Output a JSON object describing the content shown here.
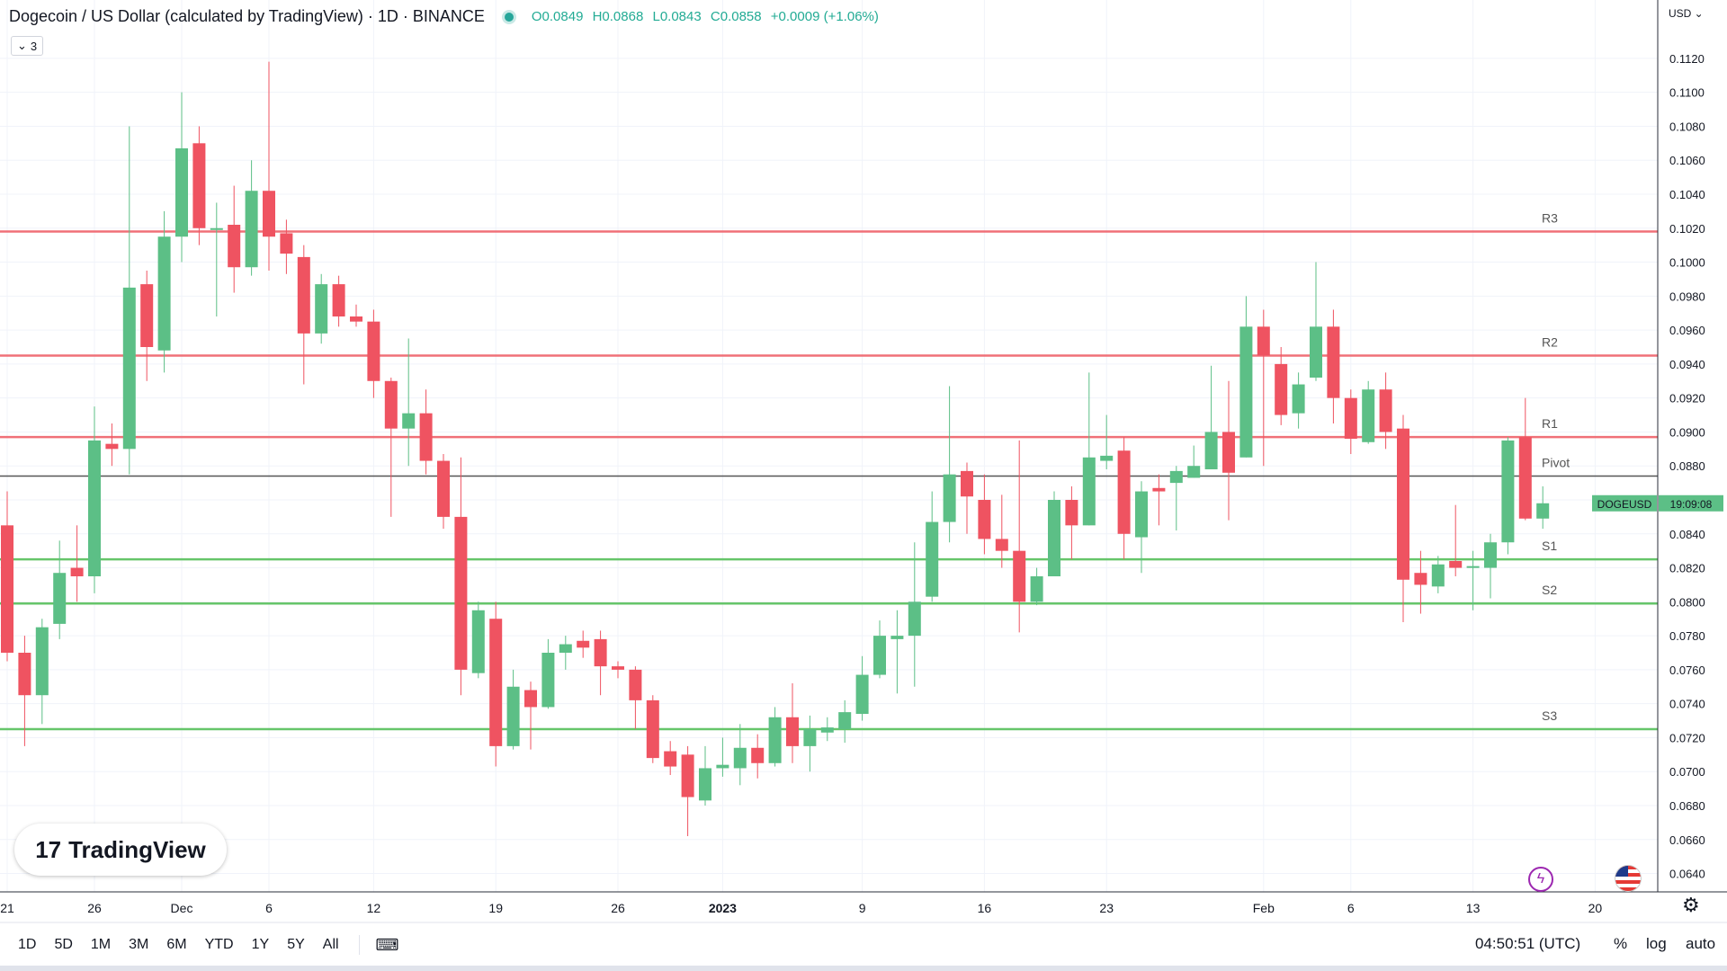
{
  "header": {
    "title": "Dogecoin / US Dollar (calculated by TradingView) · 1D · BINANCE",
    "open": "O0.0849",
    "high": "H0.0868",
    "low": "L0.0843",
    "close": "C0.0858",
    "change": "+0.0009 (+1.06%)",
    "indicator_count": "3"
  },
  "currency": "USD",
  "logo_text": "TradingView",
  "price_tag": {
    "symbol": "DOGEUSD",
    "countdown": "19:09:08",
    "price": 0.0858
  },
  "timeframes": [
    "1D",
    "5D",
    "1M",
    "3M",
    "6M",
    "YTD",
    "1Y",
    "5Y",
    "All"
  ],
  "clock": "04:50:51 (UTC)",
  "options": {
    "percent": "%",
    "log": "log",
    "auto": "auto"
  },
  "colors": {
    "up": "#5cbf86",
    "down": "#ef5361",
    "resistance": "#f07078",
    "support": "#66c56a",
    "pivot": "#555555",
    "ohlc_text": "#22ab94"
  },
  "chart_data": {
    "type": "candlestick",
    "ylim": [
      0.0635,
      0.113
    ],
    "y_ticks": [
      "0.1120",
      "0.1100",
      "0.1080",
      "0.1060",
      "0.1040",
      "0.1020",
      "0.1000",
      "0.0980",
      "0.0960",
      "0.0940",
      "0.0920",
      "0.0900",
      "0.0880",
      "0.0860",
      "0.0840",
      "0.0820",
      "0.0800",
      "0.0780",
      "0.0760",
      "0.0740",
      "0.0720",
      "0.0700",
      "0.0680",
      "0.0660",
      "0.0640"
    ],
    "x_ticks": [
      {
        "label": "21",
        "index": 0
      },
      {
        "label": "26",
        "index": 5
      },
      {
        "label": "Dec",
        "index": 10
      },
      {
        "label": "6",
        "index": 15
      },
      {
        "label": "12",
        "index": 21
      },
      {
        "label": "19",
        "index": 28
      },
      {
        "label": "26",
        "index": 35
      },
      {
        "label": "2023",
        "index": 41
      },
      {
        "label": "9",
        "index": 49
      },
      {
        "label": "16",
        "index": 56
      },
      {
        "label": "23",
        "index": 63
      },
      {
        "label": "Feb",
        "index": 72
      },
      {
        "label": "6",
        "index": 77
      },
      {
        "label": "13",
        "index": 84
      },
      {
        "label": "20",
        "index": 91
      }
    ],
    "levels": [
      {
        "name": "R3",
        "value": 0.1018,
        "kind": "resistance"
      },
      {
        "name": "R2",
        "value": 0.0945,
        "kind": "resistance"
      },
      {
        "name": "R1",
        "value": 0.0897,
        "kind": "resistance"
      },
      {
        "name": "Pivot",
        "value": 0.0874,
        "kind": "pivot"
      },
      {
        "name": "S1",
        "value": 0.0825,
        "kind": "support"
      },
      {
        "name": "S2",
        "value": 0.0799,
        "kind": "support"
      },
      {
        "name": "S3",
        "value": 0.0725,
        "kind": "support"
      }
    ],
    "candles": [
      {
        "o": 0.0845,
        "h": 0.0865,
        "l": 0.0765,
        "c": 0.077
      },
      {
        "o": 0.077,
        "h": 0.078,
        "l": 0.0715,
        "c": 0.0745
      },
      {
        "o": 0.0745,
        "h": 0.079,
        "l": 0.0728,
        "c": 0.0785
      },
      {
        "o": 0.0787,
        "h": 0.0836,
        "l": 0.0778,
        "c": 0.0817
      },
      {
        "o": 0.082,
        "h": 0.0845,
        "l": 0.08,
        "c": 0.0815
      },
      {
        "o": 0.0815,
        "h": 0.0915,
        "l": 0.0805,
        "c": 0.0895
      },
      {
        "o": 0.0893,
        "h": 0.0905,
        "l": 0.088,
        "c": 0.089
      },
      {
        "o": 0.089,
        "h": 0.108,
        "l": 0.0875,
        "c": 0.0985
      },
      {
        "o": 0.0987,
        "h": 0.0995,
        "l": 0.093,
        "c": 0.095
      },
      {
        "o": 0.0948,
        "h": 0.103,
        "l": 0.0935,
        "c": 0.1015
      },
      {
        "o": 0.1015,
        "h": 0.11,
        "l": 0.1,
        "c": 0.1067
      },
      {
        "o": 0.107,
        "h": 0.108,
        "l": 0.101,
        "c": 0.102
      },
      {
        "o": 0.102,
        "h": 0.1035,
        "l": 0.0968,
        "c": 0.102
      },
      {
        "o": 0.1022,
        "h": 0.1045,
        "l": 0.0982,
        "c": 0.0997
      },
      {
        "o": 0.0997,
        "h": 0.106,
        "l": 0.0992,
        "c": 0.1042
      },
      {
        "o": 0.1042,
        "h": 0.1118,
        "l": 0.0995,
        "c": 0.1015
      },
      {
        "o": 0.1017,
        "h": 0.1025,
        "l": 0.0993,
        "c": 0.1005
      },
      {
        "o": 0.1003,
        "h": 0.101,
        "l": 0.0928,
        "c": 0.0958
      },
      {
        "o": 0.0958,
        "h": 0.0993,
        "l": 0.0952,
        "c": 0.0987
      },
      {
        "o": 0.0987,
        "h": 0.0992,
        "l": 0.0962,
        "c": 0.0968
      },
      {
        "o": 0.0968,
        "h": 0.0975,
        "l": 0.0962,
        "c": 0.0965
      },
      {
        "o": 0.0965,
        "h": 0.0972,
        "l": 0.092,
        "c": 0.093
      },
      {
        "o": 0.093,
        "h": 0.0932,
        "l": 0.085,
        "c": 0.0902
      },
      {
        "o": 0.0902,
        "h": 0.0955,
        "l": 0.088,
        "c": 0.0911
      },
      {
        "o": 0.0911,
        "h": 0.0925,
        "l": 0.0875,
        "c": 0.0883
      },
      {
        "o": 0.0883,
        "h": 0.0887,
        "l": 0.0843,
        "c": 0.085
      },
      {
        "o": 0.085,
        "h": 0.0885,
        "l": 0.0745,
        "c": 0.076
      },
      {
        "o": 0.0758,
        "h": 0.08,
        "l": 0.0755,
        "c": 0.0795
      },
      {
        "o": 0.079,
        "h": 0.08,
        "l": 0.0703,
        "c": 0.0715
      },
      {
        "o": 0.0715,
        "h": 0.076,
        "l": 0.0713,
        "c": 0.075
      },
      {
        "o": 0.0748,
        "h": 0.0753,
        "l": 0.0713,
        "c": 0.0738
      },
      {
        "o": 0.0738,
        "h": 0.0778,
        "l": 0.0737,
        "c": 0.077
      },
      {
        "o": 0.077,
        "h": 0.078,
        "l": 0.076,
        "c": 0.0775
      },
      {
        "o": 0.0777,
        "h": 0.0783,
        "l": 0.0767,
        "c": 0.0773
      },
      {
        "o": 0.0778,
        "h": 0.0783,
        "l": 0.0745,
        "c": 0.0762
      },
      {
        "o": 0.0762,
        "h": 0.0765,
        "l": 0.0755,
        "c": 0.076
      },
      {
        "o": 0.076,
        "h": 0.0762,
        "l": 0.0725,
        "c": 0.0742
      },
      {
        "o": 0.0742,
        "h": 0.0745,
        "l": 0.0705,
        "c": 0.0708
      },
      {
        "o": 0.0712,
        "h": 0.0718,
        "l": 0.0698,
        "c": 0.0703
      },
      {
        "o": 0.071,
        "h": 0.0715,
        "l": 0.0662,
        "c": 0.0685
      },
      {
        "o": 0.0683,
        "h": 0.0715,
        "l": 0.068,
        "c": 0.0702
      },
      {
        "o": 0.0702,
        "h": 0.072,
        "l": 0.0697,
        "c": 0.0704
      },
      {
        "o": 0.0702,
        "h": 0.0728,
        "l": 0.0692,
        "c": 0.0714
      },
      {
        "o": 0.0714,
        "h": 0.0722,
        "l": 0.0696,
        "c": 0.0705
      },
      {
        "o": 0.0705,
        "h": 0.0738,
        "l": 0.0703,
        "c": 0.0732
      },
      {
        "o": 0.0732,
        "h": 0.0752,
        "l": 0.0705,
        "c": 0.0715
      },
      {
        "o": 0.0715,
        "h": 0.0733,
        "l": 0.07,
        "c": 0.0725
      },
      {
        "o": 0.0723,
        "h": 0.0732,
        "l": 0.0718,
        "c": 0.0726
      },
      {
        "o": 0.0725,
        "h": 0.0742,
        "l": 0.0717,
        "c": 0.0735
      },
      {
        "o": 0.0734,
        "h": 0.0768,
        "l": 0.073,
        "c": 0.0757
      },
      {
        "o": 0.0757,
        "h": 0.0789,
        "l": 0.0755,
        "c": 0.078
      },
      {
        "o": 0.0778,
        "h": 0.0795,
        "l": 0.0746,
        "c": 0.078
      },
      {
        "o": 0.078,
        "h": 0.0835,
        "l": 0.075,
        "c": 0.08
      },
      {
        "o": 0.0803,
        "h": 0.0865,
        "l": 0.08,
        "c": 0.0847
      },
      {
        "o": 0.0847,
        "h": 0.0927,
        "l": 0.0835,
        "c": 0.0875
      },
      {
        "o": 0.0877,
        "h": 0.0882,
        "l": 0.084,
        "c": 0.0862
      },
      {
        "o": 0.086,
        "h": 0.0875,
        "l": 0.0828,
        "c": 0.0837
      },
      {
        "o": 0.0837,
        "h": 0.0863,
        "l": 0.082,
        "c": 0.083
      },
      {
        "o": 0.083,
        "h": 0.0895,
        "l": 0.0782,
        "c": 0.08
      },
      {
        "o": 0.08,
        "h": 0.082,
        "l": 0.0798,
        "c": 0.0815
      },
      {
        "o": 0.0815,
        "h": 0.0865,
        "l": 0.0815,
        "c": 0.086
      },
      {
        "o": 0.086,
        "h": 0.0868,
        "l": 0.0825,
        "c": 0.0845
      },
      {
        "o": 0.0845,
        "h": 0.0935,
        "l": 0.0845,
        "c": 0.0885
      },
      {
        "o": 0.0883,
        "h": 0.091,
        "l": 0.0878,
        "c": 0.0886
      },
      {
        "o": 0.0889,
        "h": 0.0897,
        "l": 0.0825,
        "c": 0.084
      },
      {
        "o": 0.0838,
        "h": 0.0871,
        "l": 0.0817,
        "c": 0.0865
      },
      {
        "o": 0.0867,
        "h": 0.0875,
        "l": 0.0845,
        "c": 0.0865
      },
      {
        "o": 0.087,
        "h": 0.088,
        "l": 0.0842,
        "c": 0.0877
      },
      {
        "o": 0.0873,
        "h": 0.0892,
        "l": 0.0873,
        "c": 0.088
      },
      {
        "o": 0.0878,
        "h": 0.0939,
        "l": 0.0878,
        "c": 0.09
      },
      {
        "o": 0.09,
        "h": 0.093,
        "l": 0.0848,
        "c": 0.0876
      },
      {
        "o": 0.0885,
        "h": 0.098,
        "l": 0.0885,
        "c": 0.0962
      },
      {
        "o": 0.0962,
        "h": 0.0972,
        "l": 0.088,
        "c": 0.0945
      },
      {
        "o": 0.094,
        "h": 0.095,
        "l": 0.0904,
        "c": 0.091
      },
      {
        "o": 0.0911,
        "h": 0.0935,
        "l": 0.0902,
        "c": 0.0928
      },
      {
        "o": 0.0932,
        "h": 0.1,
        "l": 0.093,
        "c": 0.0962
      },
      {
        "o": 0.0962,
        "h": 0.0972,
        "l": 0.0905,
        "c": 0.092
      },
      {
        "o": 0.092,
        "h": 0.0925,
        "l": 0.0887,
        "c": 0.0896
      },
      {
        "o": 0.0894,
        "h": 0.093,
        "l": 0.0893,
        "c": 0.0925
      },
      {
        "o": 0.0925,
        "h": 0.0935,
        "l": 0.089,
        "c": 0.09
      },
      {
        "o": 0.0902,
        "h": 0.091,
        "l": 0.0788,
        "c": 0.0813
      },
      {
        "o": 0.0817,
        "h": 0.083,
        "l": 0.0793,
        "c": 0.081
      },
      {
        "o": 0.0809,
        "h": 0.0827,
        "l": 0.0805,
        "c": 0.0822
      },
      {
        "o": 0.0824,
        "h": 0.0857,
        "l": 0.0815,
        "c": 0.082
      },
      {
        "o": 0.082,
        "h": 0.083,
        "l": 0.0795,
        "c": 0.0821
      },
      {
        "o": 0.082,
        "h": 0.084,
        "l": 0.0802,
        "c": 0.0835
      },
      {
        "o": 0.0835,
        "h": 0.0897,
        "l": 0.0828,
        "c": 0.0895
      },
      {
        "o": 0.0897,
        "h": 0.092,
        "l": 0.0848,
        "c": 0.0849
      },
      {
        "o": 0.0849,
        "h": 0.0868,
        "l": 0.0843,
        "c": 0.0858
      }
    ]
  }
}
